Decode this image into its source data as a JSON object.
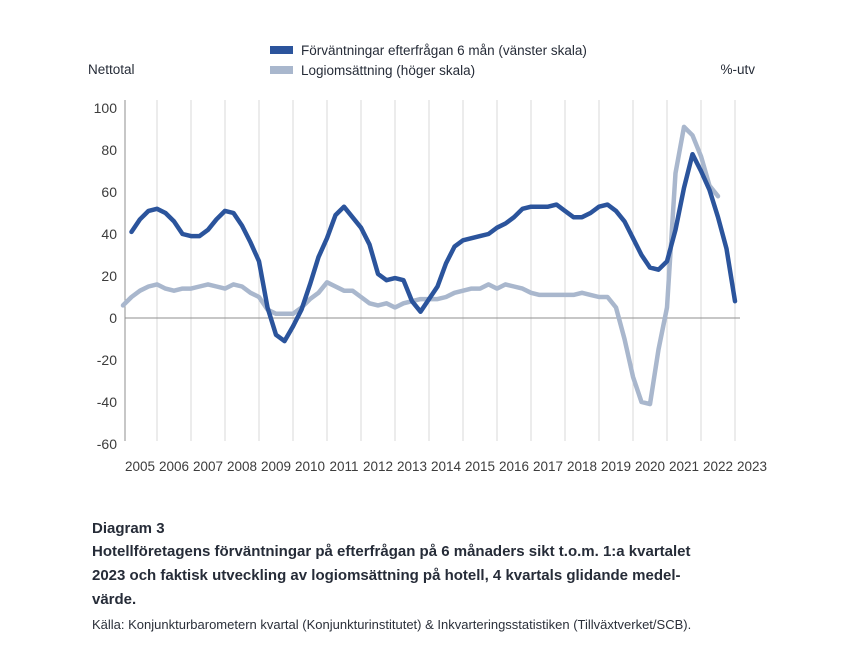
{
  "colors": {
    "primary_line": "#2b549c",
    "secondary_line": "#a9b7cd",
    "text": "#262c38",
    "grid": "#d9d9d9",
    "axis": "#8f8f8f",
    "tick_text": "#3c3c3c"
  },
  "chart_data": {
    "type": "line",
    "left_axis_label": "Nettotal",
    "right_axis_label": "%-utv",
    "legend_position": "top-center",
    "grid": "vertical-yearly",
    "zero_line": true,
    "ylim": [
      -60,
      104
    ],
    "y_ticks": [
      100,
      80,
      60,
      40,
      20,
      0,
      -20,
      -40,
      -60
    ],
    "x_tick_years": [
      2005,
      2006,
      2007,
      2008,
      2009,
      2010,
      2011,
      2012,
      2013,
      2014,
      2015,
      2016,
      2017,
      2018,
      2019,
      2020,
      2021,
      2022,
      2023
    ],
    "x_unit": "year.quarter (values are quarterly)",
    "series": [
      {
        "name": "Förväntningar efterfrågan 6 mån (vänster skala)",
        "scale": "left (Nettotal)",
        "color": "#2b549c",
        "x_start": 2005.25,
        "x_step": 0.25,
        "values": [
          41,
          47,
          51,
          52,
          50,
          46,
          40,
          39,
          39,
          42,
          47,
          51,
          50,
          44,
          36,
          27,
          5,
          -8,
          -11,
          -4,
          4,
          16,
          29,
          38,
          49,
          53,
          48,
          43,
          35,
          21,
          18,
          19,
          18,
          8,
          3,
          9,
          15,
          26,
          34,
          37,
          38,
          39,
          40,
          43,
          45,
          48,
          52,
          53,
          53,
          53,
          54,
          51,
          48,
          48,
          50,
          53,
          54,
          51,
          46,
          38,
          30,
          24,
          23,
          27,
          42,
          62,
          78,
          70,
          61,
          48,
          33,
          8
        ]
      },
      {
        "name": "Logiomsättning (höger skala)",
        "scale": "right (%-utv)",
        "color": "#a9b7cd",
        "x_start": 2005.0,
        "x_step": 0.25,
        "values": [
          6,
          10,
          13,
          15,
          16,
          14,
          13,
          14,
          14,
          15,
          16,
          15,
          14,
          16,
          15,
          12,
          10,
          4,
          2,
          2,
          2,
          5,
          9,
          12,
          17,
          15,
          13,
          13,
          10,
          7,
          6,
          7,
          5,
          7,
          8,
          9,
          9,
          9,
          10,
          12,
          13,
          14,
          14,
          16,
          14,
          16,
          15,
          14,
          12,
          11,
          11,
          11,
          11,
          11,
          12,
          11,
          10,
          10,
          5,
          -10,
          -28,
          -40,
          -41,
          -15,
          5,
          69,
          91,
          87,
          77,
          63,
          58
        ]
      }
    ]
  },
  "caption": {
    "label": "Diagram 3",
    "lines": [
      "Hotellföretagens förväntningar på efterfrågan på 6 månaders sikt t.o.m. 1:a kvartalet",
      "2023 och faktisk utveckling av logiomsättning på hotell, 4 kvartals glidande medel-",
      "värde."
    ],
    "source": "Källa: Konjunkturbarometern kvartal (Konjunkturinstitutet) & Inkvarteringsstatistiken (Tillväxtverket/SCB)."
  }
}
